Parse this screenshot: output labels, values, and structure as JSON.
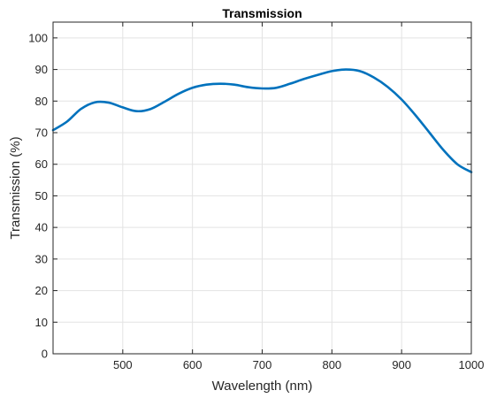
{
  "chart_data": {
    "type": "line",
    "title": "Transmission",
    "xlabel": "Wavelength (nm)",
    "ylabel": "Transmission (%)",
    "xlim": [
      400,
      1000
    ],
    "ylim": [
      0,
      105
    ],
    "xticks": [
      500,
      600,
      700,
      800,
      900,
      1000
    ],
    "yticks": [
      0,
      10,
      20,
      30,
      40,
      50,
      60,
      70,
      80,
      90,
      100
    ],
    "grid": true,
    "series": [
      {
        "color": "#0072BD",
        "x": [
          400,
          420,
          440,
          460,
          480,
          500,
          520,
          540,
          560,
          580,
          600,
          620,
          640,
          660,
          680,
          700,
          720,
          740,
          760,
          780,
          800,
          820,
          840,
          860,
          880,
          900,
          920,
          940,
          960,
          980,
          1000
        ],
        "y": [
          70.8,
          73.5,
          77.5,
          79.6,
          79.5,
          78.0,
          76.8,
          77.5,
          79.8,
          82.3,
          84.2,
          85.2,
          85.5,
          85.2,
          84.4,
          84.0,
          84.2,
          85.5,
          87.0,
          88.3,
          89.5,
          90.0,
          89.5,
          87.5,
          84.5,
          80.5,
          75.5,
          70.0,
          64.5,
          60.0,
          57.5
        ]
      }
    ]
  }
}
